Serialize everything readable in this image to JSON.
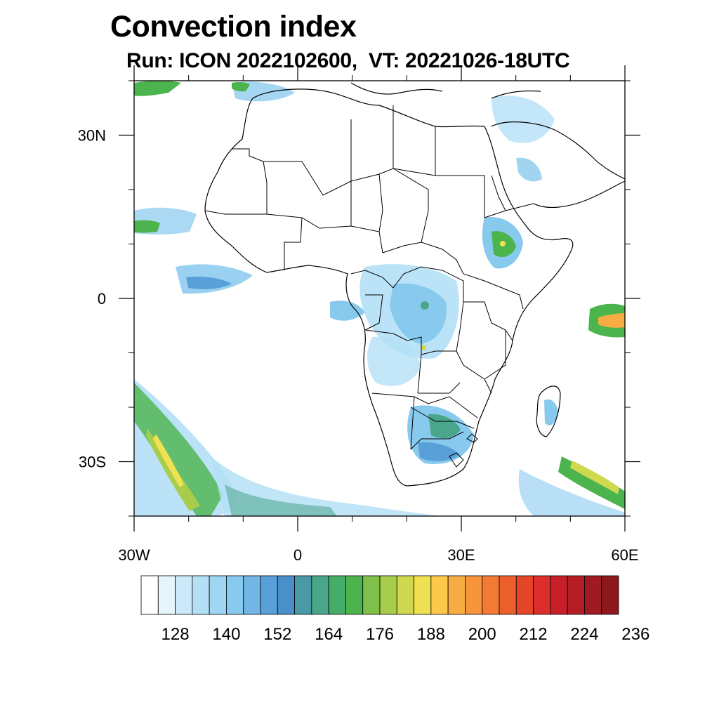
{
  "title": "Convection index",
  "subtitle": "Run: ICON 2022102600,  VT: 20221026-18UTC",
  "map": {
    "lon_range": [
      -30,
      60
    ],
    "lat_range": [
      -40,
      40
    ],
    "lon_ticks": [
      {
        "value": -30,
        "label": "30W"
      },
      {
        "value": 0,
        "label": "0"
      },
      {
        "value": 30,
        "label": "30E"
      },
      {
        "value": 60,
        "label": "60E"
      }
    ],
    "lat_ticks": [
      {
        "value": 30,
        "label": "30N"
      },
      {
        "value": 0,
        "label": "0"
      },
      {
        "value": -30,
        "label": "30S"
      }
    ],
    "field_name": "Convection index"
  },
  "colorbar": {
    "colors": [
      "#ffffff",
      "#e6f4fc",
      "#cbe9f8",
      "#b4e0f6",
      "#9ed6f3",
      "#88c9ee",
      "#72b6e6",
      "#5aa0d8",
      "#4a8fca",
      "#4a9aa6",
      "#4aa68a",
      "#45ad6a",
      "#4cb44c",
      "#7fc04a",
      "#a8cc4c",
      "#cfd84e",
      "#efe152",
      "#fcc94c",
      "#f8ad44",
      "#f6953c",
      "#f27a34",
      "#ec5f2c",
      "#e44528",
      "#dc2e2a",
      "#c8202a",
      "#b41c26",
      "#a01a22",
      "#8c181e"
    ],
    "labels": [
      "128",
      "140",
      "152",
      "164",
      "176",
      "188",
      "200",
      "212",
      "224",
      "236"
    ]
  }
}
